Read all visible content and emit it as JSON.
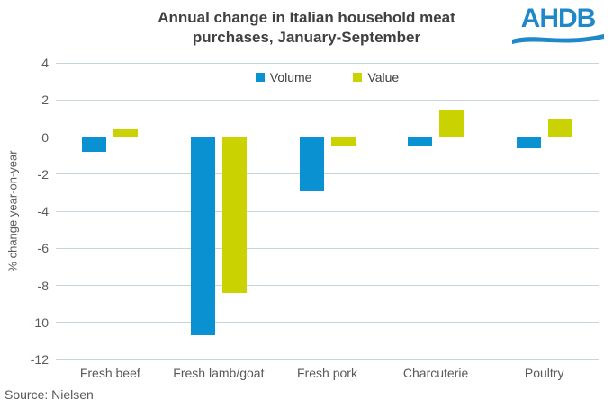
{
  "header": {
    "title": "Annual change in Italian household meat\npurchases, January-September",
    "logo_text": "AHDB"
  },
  "footer": {
    "source": "Source: Nielsen"
  },
  "colors": {
    "volume_blue": "#0991d2",
    "value_yellow": "#cad201",
    "logo_blue": "#1e88c9",
    "title_text": "#404040",
    "axis_text": "#595959",
    "gridline": "#c5d5db"
  },
  "chart_data": {
    "type": "bar",
    "title": "Annual change in Italian household meat purchases, January-September",
    "categories": [
      "Fresh beef",
      "Fresh lamb/goat",
      "Fresh pork",
      "Charcuterie",
      "Poultry"
    ],
    "series": [
      {
        "name": "Volume",
        "color": "#0991d2",
        "values": [
          -0.8,
          -10.7,
          -2.9,
          -0.5,
          -0.6
        ]
      },
      {
        "name": "Value",
        "color": "#cad201",
        "values": [
          0.4,
          -8.4,
          -0.5,
          1.5,
          1.0
        ]
      }
    ],
    "xlabel": "",
    "ylabel": "% change year-on-year",
    "ylim": [
      -12,
      4
    ],
    "yticks": [
      4,
      2,
      0,
      -2,
      -4,
      -6,
      -8,
      -10,
      -12
    ],
    "grid": true,
    "legend_position": "top-center"
  }
}
